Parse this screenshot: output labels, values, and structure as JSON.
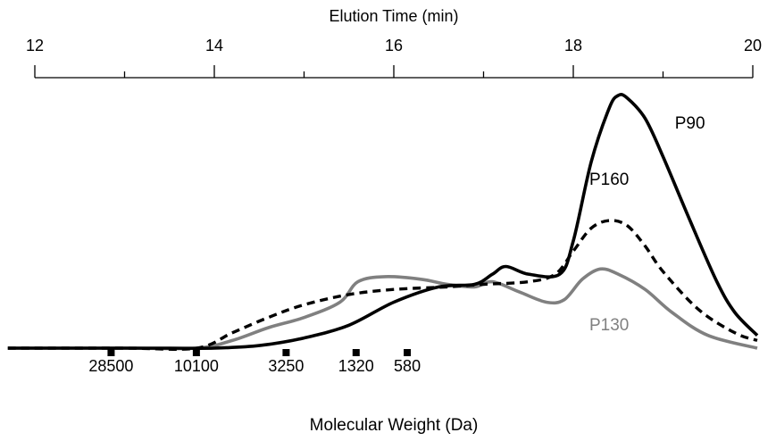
{
  "chart_data": {
    "type": "line",
    "title": "",
    "top_axis": {
      "label": "Elution Time (min)",
      "ticks": [
        12,
        14,
        16,
        18,
        20
      ],
      "range": [
        12,
        20
      ]
    },
    "bottom_axis": {
      "label": "Molecular Weight (Da)",
      "markers": [
        {
          "label": "28500",
          "x": 12.85
        },
        {
          "label": "10100",
          "x": 13.8
        },
        {
          "label": "3250",
          "x": 14.8
        },
        {
          "label": "1320",
          "x": 15.58
        },
        {
          "label": "580",
          "x": 16.15
        }
      ]
    },
    "ylim": [
      0,
      1
    ],
    "grid": false,
    "series": [
      {
        "name": "P90",
        "color": "#000000",
        "style": "solid",
        "x": [
          11.7,
          12.5,
          13.5,
          14.0,
          14.5,
          15.0,
          15.5,
          16.0,
          16.5,
          16.9,
          17.1,
          17.25,
          17.5,
          17.85,
          18.0,
          18.2,
          18.4,
          18.5,
          18.6,
          18.8,
          19.0,
          19.3,
          19.6,
          19.8,
          20.05
        ],
        "y": [
          0.0,
          0.0,
          0.0,
          0.0,
          0.01,
          0.04,
          0.09,
          0.18,
          0.24,
          0.25,
          0.29,
          0.32,
          0.29,
          0.29,
          0.42,
          0.73,
          0.94,
          0.99,
          0.98,
          0.9,
          0.75,
          0.5,
          0.26,
          0.14,
          0.05
        ]
      },
      {
        "name": "P160",
        "color": "#000000",
        "style": "dashed",
        "x": [
          11.7,
          13.0,
          13.8,
          14.2,
          14.6,
          15.0,
          15.5,
          16.0,
          16.6,
          17.0,
          17.5,
          17.8,
          18.0,
          18.2,
          18.4,
          18.6,
          18.8,
          19.0,
          19.4,
          19.8,
          20.05
        ],
        "y": [
          0.0,
          0.0,
          0.0,
          0.06,
          0.12,
          0.17,
          0.21,
          0.23,
          0.24,
          0.25,
          0.26,
          0.29,
          0.38,
          0.47,
          0.5,
          0.48,
          0.4,
          0.3,
          0.15,
          0.06,
          0.03
        ]
      },
      {
        "name": "P130",
        "color": "#808080",
        "style": "solid",
        "x": [
          11.7,
          13.0,
          13.8,
          14.2,
          14.6,
          15.0,
          15.4,
          15.6,
          15.9,
          16.3,
          16.6,
          16.9,
          17.1,
          17.4,
          17.7,
          17.9,
          18.1,
          18.3,
          18.5,
          18.8,
          19.1,
          19.5,
          20.05
        ],
        "y": [
          0.0,
          0.0,
          0.0,
          0.03,
          0.08,
          0.12,
          0.18,
          0.26,
          0.28,
          0.27,
          0.25,
          0.24,
          0.26,
          0.22,
          0.18,
          0.19,
          0.27,
          0.31,
          0.29,
          0.23,
          0.14,
          0.05,
          0.0
        ]
      }
    ],
    "series_labels": [
      "P90",
      "P160",
      "P130"
    ]
  }
}
